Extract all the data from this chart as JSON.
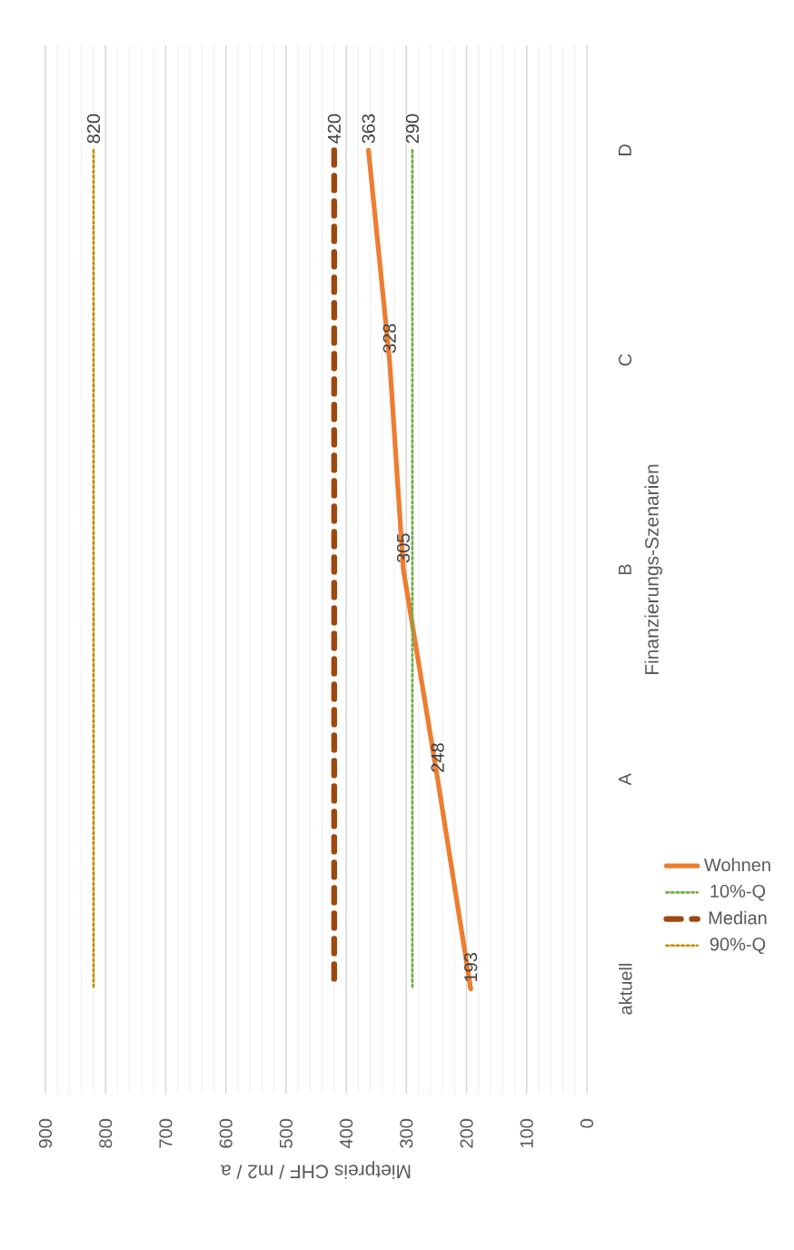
{
  "chart_data": {
    "type": "line",
    "orientation": "horizontal",
    "xlabel": "Mietpreis CHF / m2 / a",
    "ylabel": "Finanzierungs-Szenarien",
    "categories": [
      "D",
      "C",
      "B",
      "A",
      "aktuell"
    ],
    "xlim": [
      900,
      0
    ],
    "xticks": [
      0,
      100,
      200,
      300,
      400,
      500,
      600,
      700,
      800,
      900
    ],
    "grid": "x",
    "legend": "right",
    "series": [
      {
        "name": "Wohnen",
        "color": "#ed7d31",
        "line_style": "solid",
        "values": [
          363,
          328,
          305,
          248,
          193
        ],
        "value_labels": [
          "363",
          "328",
          "305",
          "248",
          "193"
        ]
      },
      {
        "name": "10%-Q",
        "color": "#70ad47",
        "line_style": "dotted",
        "values": [
          290,
          290,
          290,
          290,
          290
        ],
        "value_labels": [
          "290",
          null,
          null,
          null,
          null
        ]
      },
      {
        "name": "Median",
        "color": "#9e480e",
        "line_style": "dashed",
        "values": [
          420,
          420,
          420,
          420,
          420
        ],
        "value_labels": [
          "420",
          null,
          null,
          null,
          null
        ]
      },
      {
        "name": "90%-Q",
        "color": "#bf9000",
        "line_style": "dotted",
        "values": [
          820,
          820,
          820,
          820,
          820
        ],
        "value_labels": [
          "820",
          null,
          null,
          null,
          null
        ]
      }
    ]
  }
}
